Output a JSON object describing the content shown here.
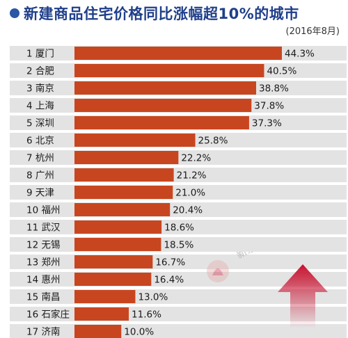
{
  "header": {
    "title": "新建商品住宅价格同比涨幅超10%的城市",
    "subtitle": "(2016年8月)"
  },
  "watermark": {
    "text": "新京报新媒体出品"
  },
  "colors": {
    "bar": "#c8461f",
    "row_bg": "#e3e3e3",
    "title": "#1f3f8a",
    "arrow": "#c8102e"
  },
  "chart_data": {
    "type": "bar",
    "orientation": "horizontal",
    "title": "新建商品住宅价格同比涨幅超10%的城市",
    "subtitle": "(2016年8月)",
    "categories": [
      "1 厦门",
      "2 合肥",
      "3 南京",
      "4 上海",
      "5 深圳",
      "6 北京",
      "7 杭州",
      "8 广州",
      "9 天津",
      "10 福州",
      "11 武汉",
      "12 无锡",
      "13 郑州",
      "14 惠州",
      "15 南昌",
      "16 石家庄",
      "17 济南"
    ],
    "values": [
      44.3,
      40.5,
      38.8,
      37.8,
      37.3,
      25.8,
      22.2,
      21.2,
      21.0,
      20.4,
      18.6,
      18.5,
      16.7,
      16.4,
      13.0,
      11.6,
      10.0
    ],
    "value_labels": [
      "44.3%",
      "40.5%",
      "38.8%",
      "37.8%",
      "37.3%",
      "25.8%",
      "22.2%",
      "21.2%",
      "21.0%",
      "20.4%",
      "18.6%",
      "18.5%",
      "16.7%",
      "16.4%",
      "13.0%",
      "11.6%",
      "10.0%"
    ],
    "unit": "%",
    "xlim": [
      0,
      44.3
    ],
    "grid": false,
    "legend": "none"
  }
}
